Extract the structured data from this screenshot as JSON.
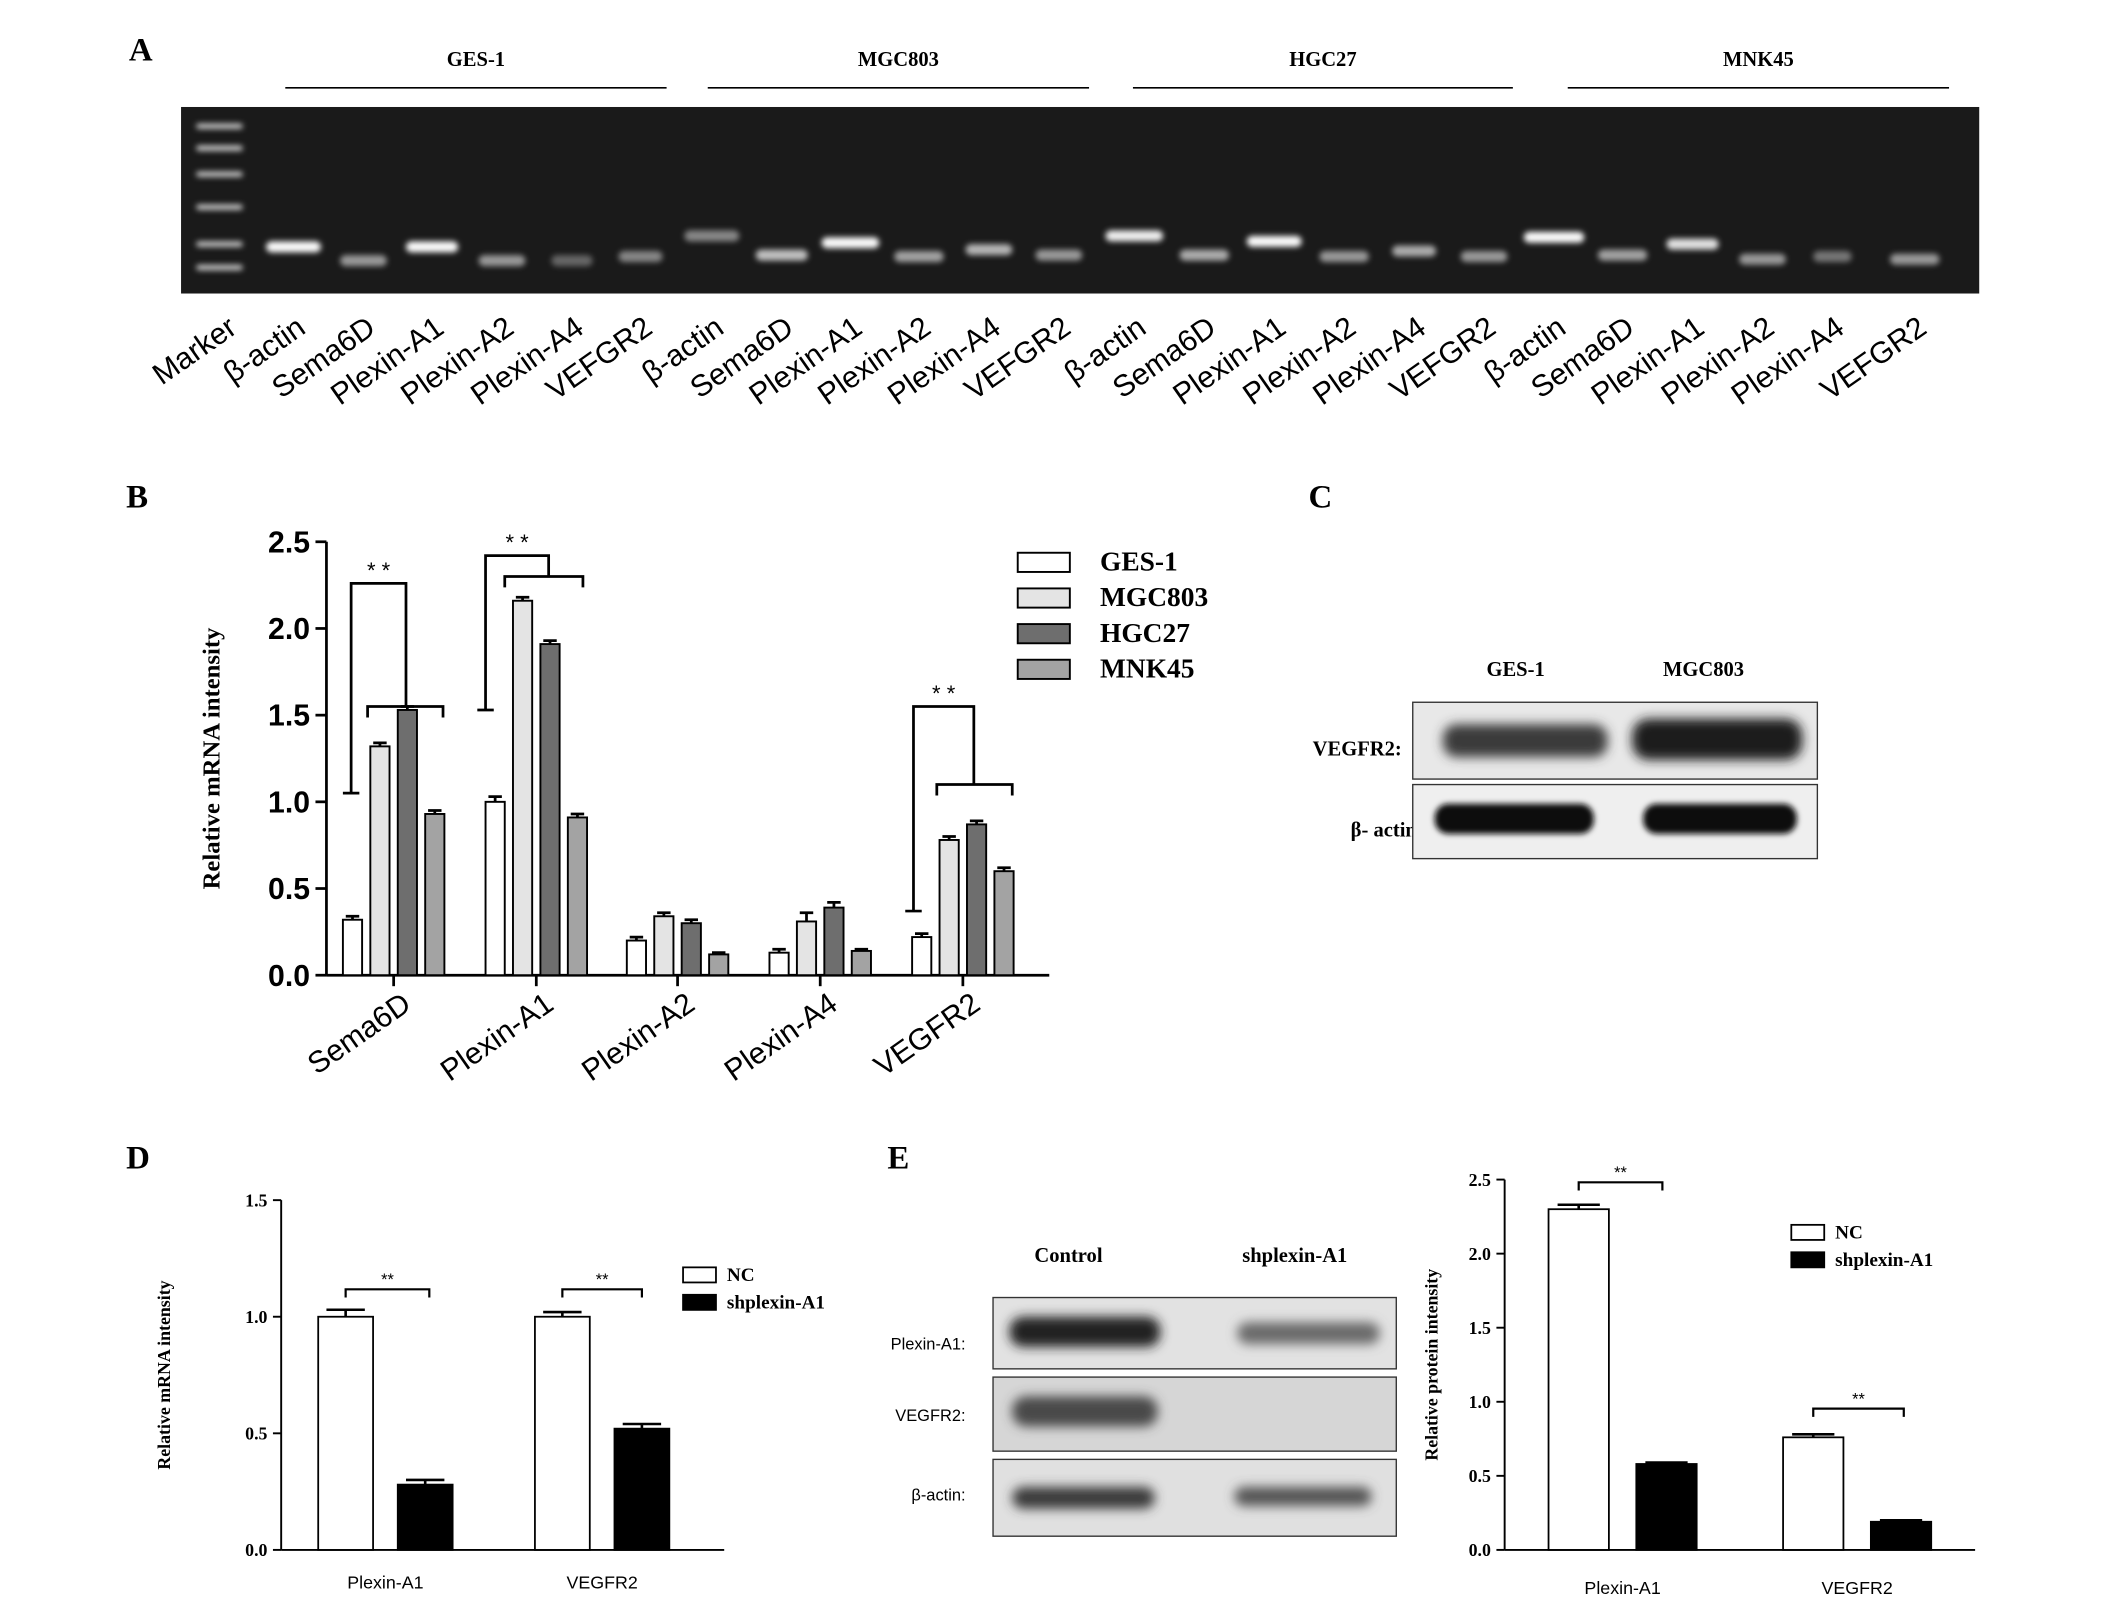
{
  "panels": {
    "A": {
      "letter": "A",
      "groups": [
        "GES-1",
        "MGC803",
        "HGC27",
        "MNK45"
      ],
      "lane_labels": [
        "Marker",
        "β-actin",
        "Sema6D",
        "Plexin-A1",
        "Plexin-A2",
        "Plexin-A4",
        "VEFGR2",
        "β-actin",
        "Sema6D",
        "Plexin-A1",
        "Plexin-A2",
        "Plexin-A4",
        "VEFGR2",
        "β-actin",
        "Sema6D",
        "Plexin-A1",
        "Plexin-A2",
        "Plexin-A4",
        "VEFGR2",
        "β-actin",
        "Sema6D",
        "Plexin-A1",
        "Plexin-A2",
        "Plexin-A4",
        "VEFGR2"
      ]
    },
    "B": {
      "letter": "B"
    },
    "C": {
      "letter": "C",
      "columns": [
        "GES-1",
        "MGC803"
      ],
      "rows": [
        "VEGFR2:",
        "β- actin:"
      ]
    },
    "D": {
      "letter": "D"
    },
    "E": {
      "letter": "E",
      "columns": [
        "Control",
        "shplexin-A1"
      ],
      "rows": [
        "Plexin-A1:",
        "VEGFR2:",
        "β-actin:"
      ]
    }
  },
  "chart_data": [
    {
      "id": "B",
      "type": "bar",
      "categories": [
        "Sema6D",
        "Plexin-A1",
        "Plexin-A2",
        "Plexin-A4",
        "VEGFR2"
      ],
      "series": [
        {
          "name": "GES-1",
          "values": [
            0.32,
            1.0,
            0.2,
            0.13,
            0.22
          ],
          "errors": [
            0.02,
            0.03,
            0.02,
            0.02,
            0.02
          ],
          "color": "#ffffff"
        },
        {
          "name": "MGC803",
          "values": [
            1.32,
            2.16,
            0.34,
            0.31,
            0.78
          ],
          "errors": [
            0.02,
            0.02,
            0.02,
            0.05,
            0.02
          ],
          "color": "#e4e4e4"
        },
        {
          "name": "HGC27",
          "values": [
            1.53,
            1.91,
            0.3,
            0.39,
            0.87
          ],
          "errors": [
            0.02,
            0.02,
            0.02,
            0.03,
            0.02
          ],
          "color": "#6e6e6e"
        },
        {
          "name": "MNK45",
          "values": [
            0.93,
            0.91,
            0.12,
            0.14,
            0.6
          ],
          "errors": [
            0.02,
            0.02,
            0.01,
            0.01,
            0.02
          ],
          "color": "#a3a3a3"
        }
      ],
      "ylabel": "Relative mRNA intensity",
      "ylim": [
        0,
        2.5
      ],
      "yticks": [
        "0.0",
        "0.5",
        "1.0",
        "1.5",
        "2.0",
        "2.5"
      ],
      "significance": [
        {
          "category": "Sema6D",
          "label": "* *"
        },
        {
          "category": "Plexin-A1",
          "label": "* *"
        },
        {
          "category": "VEGFR2",
          "label": "* *"
        }
      ]
    },
    {
      "id": "D",
      "type": "bar",
      "categories": [
        "Plexin-A1",
        "VEGFR2"
      ],
      "series": [
        {
          "name": "NC",
          "values": [
            1.0,
            1.0
          ],
          "errors": [
            0.03,
            0.02
          ],
          "color": "#ffffff"
        },
        {
          "name": "shplexin-A1",
          "values": [
            0.28,
            0.52
          ],
          "errors": [
            0.02,
            0.02
          ],
          "color": "#000000"
        }
      ],
      "ylabel": "Relative mRNA intensity",
      "ylim": [
        0,
        1.5
      ],
      "yticks": [
        "0.0",
        "0.5",
        "1.0",
        "1.5"
      ],
      "significance": [
        {
          "category": "Plexin-A1",
          "label": "**"
        },
        {
          "category": "VEGFR2",
          "label": "**"
        }
      ]
    },
    {
      "id": "E",
      "type": "bar",
      "categories": [
        "Plexin-A1",
        "VEGFR2"
      ],
      "series": [
        {
          "name": "NC",
          "values": [
            2.3,
            0.76
          ],
          "errors": [
            0.03,
            0.02
          ],
          "color": "#ffffff"
        },
        {
          "name": "shplexin-A1",
          "values": [
            0.58,
            0.19
          ],
          "errors": [
            0.01,
            0.01
          ],
          "color": "#000000"
        }
      ],
      "ylabel": "Relative protein intensity",
      "ylim": [
        0,
        2.5
      ],
      "yticks": [
        "0.0",
        "0.5",
        "1.0",
        "1.5",
        "2.0",
        "2.5"
      ],
      "significance": [
        {
          "category": "Plexin-A1",
          "label": "**"
        },
        {
          "category": "VEGFR2",
          "label": "**"
        }
      ]
    }
  ]
}
